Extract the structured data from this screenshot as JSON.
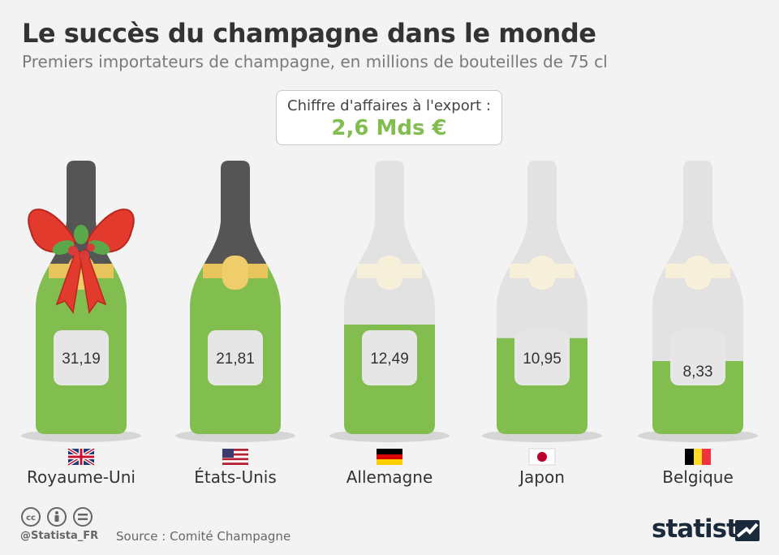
{
  "header": {
    "title": "Le succès du champagne dans le monde",
    "subtitle": "Premiers importateurs de champagne, en millions de bouteilles de 75 cl"
  },
  "kpi": {
    "label": "Chiffre d'affaires à l'export :",
    "value": "2,6 Mds €"
  },
  "chart_data": {
    "type": "bar",
    "categories": [
      "Royaume-Uni",
      "États-Unis",
      "Allemagne",
      "Japon",
      "Belgique"
    ],
    "values": [
      31.19,
      21.81,
      12.49,
      10.95,
      8.33
    ],
    "value_labels": [
      "31,19",
      "21,81",
      "12,49",
      "10,95",
      "8,33"
    ],
    "ylim": [
      0,
      31.19
    ],
    "colors": {
      "fill": "#82bd4f",
      "empty": "#e2e2e2",
      "label_bg": "#e6e6e6"
    },
    "icons": [
      "uk-flag-icon",
      "us-flag-icon",
      "germany-flag-icon",
      "japan-flag-icon",
      "belgium-flag-icon"
    ],
    "decoration": "red-bow-icon"
  },
  "footer": {
    "handle": "@Statista_FR",
    "source": "Source : Comité Champagne",
    "brand": "statista",
    "license_icons": [
      "cc-icon",
      "by-icon",
      "nd-icon"
    ]
  }
}
